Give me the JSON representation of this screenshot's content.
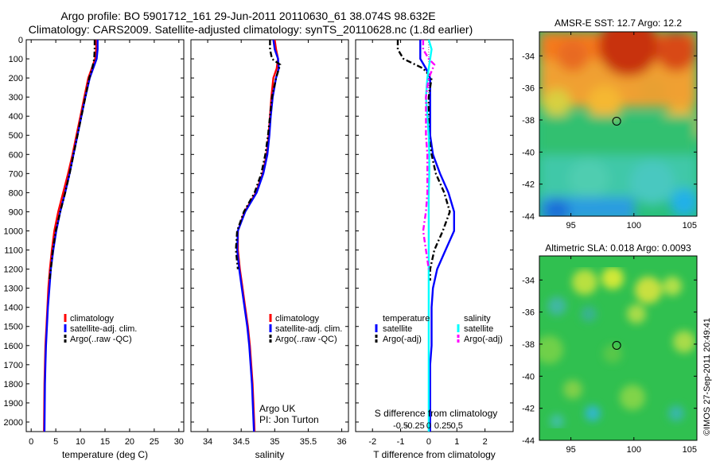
{
  "header": {
    "title_line1": "Argo profile: BO 5901712_161 29-Jun-2011 20110630_61 38.074S 98.632E",
    "title_line2": "Climatology: CARS2009. Satellite-adjusted climatology: synTS_20110628.nc (1.8d earlier)"
  },
  "side_text": "©IMOS 27-Sep-2011 20:49:41",
  "colors": {
    "climatology": "#ff0000",
    "satellite": "#0000ff",
    "argo": "#000000",
    "sal_satellite": "#00ffff",
    "sal_argo": "#ff00ff"
  },
  "chart_data": [
    {
      "id": "temperature",
      "type": "line",
      "xlabel": "temperature (deg C)",
      "ylabel": "",
      "xlim": [
        -1,
        31
      ],
      "ylim": [
        2050,
        0
      ],
      "xticks": [
        0,
        5,
        10,
        15,
        20,
        25,
        30
      ],
      "yticks": [
        0,
        100,
        200,
        300,
        400,
        500,
        600,
        700,
        800,
        900,
        1000,
        1100,
        1200,
        1300,
        1400,
        1500,
        1600,
        1700,
        1800,
        1900,
        2000
      ],
      "legend": [
        "climatology",
        "satellite-adj. clim.",
        "Argo(..raw -QC)"
      ],
      "series": [
        {
          "name": "climatology",
          "color": "#ff0000",
          "x": [
            13.2,
            13.2,
            13.0,
            12.3,
            11.6,
            10.8,
            10.0,
            9.2,
            8.4,
            7.5,
            6.5,
            5.5,
            4.7,
            4.2,
            3.8,
            3.5,
            3.3,
            3.1,
            2.9,
            2.8,
            2.7,
            2.6
          ],
          "y": [
            0,
            50,
            100,
            150,
            200,
            300,
            400,
            500,
            600,
            700,
            800,
            900,
            1000,
            1100,
            1200,
            1300,
            1400,
            1500,
            1600,
            1700,
            1800,
            2050
          ]
        },
        {
          "name": "satellite-adj. clim.",
          "color": "#0000ff",
          "x": [
            13.5,
            13.5,
            13.3,
            12.6,
            11.9,
            11.0,
            10.2,
            9.4,
            8.6,
            7.8,
            6.9,
            5.9,
            5.1,
            4.5,
            4.0,
            3.7,
            3.4,
            3.2,
            3.0,
            2.9,
            2.8,
            2.7
          ],
          "y": [
            0,
            50,
            100,
            150,
            200,
            300,
            400,
            500,
            600,
            700,
            800,
            900,
            1000,
            1100,
            1200,
            1300,
            1400,
            1500,
            1600,
            1700,
            1800,
            2050
          ]
        },
        {
          "name": "Argo(..raw -QC)",
          "color": "#000000",
          "x": [
            12.9,
            12.9,
            12.8,
            12.4,
            11.8,
            11.0,
            10.2,
            9.4,
            8.6,
            7.8,
            6.9,
            5.9,
            5.0,
            4.4,
            4.0,
            3.7
          ],
          "y": [
            0,
            50,
            100,
            150,
            200,
            300,
            400,
            500,
            600,
            700,
            800,
            900,
            1000,
            1100,
            1200,
            1260
          ]
        }
      ]
    },
    {
      "id": "salinity",
      "type": "line",
      "xlabel": "salinity",
      "ylabel": "",
      "xlim": [
        33.75,
        36.1
      ],
      "ylim": [
        2050,
        0
      ],
      "xticks": [
        34,
        34.5,
        35,
        35.5,
        36
      ],
      "legend": [
        "climatology",
        "satellite-adj. clim.",
        "Argo(..raw -QC)"
      ],
      "annotation_line1": "Argo UK",
      "annotation_line2": "PI: Jon Turton",
      "series": [
        {
          "name": "climatology",
          "color": "#ff0000",
          "x": [
            35.0,
            35.02,
            35.05,
            35.03,
            34.98,
            34.95,
            34.93,
            34.91,
            34.88,
            34.82,
            34.72,
            34.55,
            34.45,
            34.45,
            34.48,
            34.52,
            34.56,
            34.6,
            34.63,
            34.65,
            34.67,
            34.7
          ],
          "y": [
            0,
            50,
            100,
            150,
            200,
            300,
            400,
            500,
            600,
            700,
            800,
            900,
            1000,
            1100,
            1200,
            1300,
            1400,
            1500,
            1600,
            1700,
            1800,
            2050
          ]
        },
        {
          "name": "satellite-adj. clim.",
          "color": "#0000ff",
          "x": [
            34.98,
            35.0,
            35.05,
            35.06,
            35.02,
            34.97,
            34.94,
            34.92,
            34.89,
            34.83,
            34.73,
            34.56,
            34.45,
            34.44,
            34.47,
            34.51,
            34.55,
            34.59,
            34.62,
            34.64,
            34.66,
            34.69
          ],
          "y": [
            0,
            50,
            100,
            150,
            200,
            300,
            400,
            500,
            600,
            700,
            800,
            900,
            1000,
            1100,
            1200,
            1300,
            1400,
            1500,
            1600,
            1700,
            1800,
            2050
          ]
        },
        {
          "name": "Argo(..raw -QC)",
          "color": "#000000",
          "x": [
            34.93,
            34.93,
            34.96,
            35.08,
            35.02,
            34.96,
            34.93,
            34.9,
            34.86,
            34.8,
            34.7,
            34.54,
            34.44,
            34.42,
            34.45
          ],
          "y": [
            0,
            50,
            100,
            130,
            200,
            300,
            400,
            500,
            600,
            700,
            800,
            900,
            1000,
            1100,
            1200
          ]
        }
      ]
    },
    {
      "id": "difference",
      "type": "line",
      "xlabel": "T difference from climatology",
      "xlabel_top": "S difference from climatology",
      "xlim": [
        -2.6,
        3
      ],
      "ylim": [
        2050,
        0
      ],
      "xticks": [
        -2,
        -1,
        0,
        1,
        2
      ],
      "xticks_top_labels": [
        "-0.5",
        "-0.25",
        "0",
        "0.25",
        "0.5"
      ],
      "xticks_top_values": [
        -1,
        -0.5,
        0,
        0.5,
        1
      ],
      "legend_temperature_title": "temperature",
      "legend_salinity_title": "salinity",
      "legend_temperature": [
        "satellite",
        "Argo(-adj)"
      ],
      "legend_salinity": [
        "satellite",
        "Argo(-adj)"
      ],
      "series": [
        {
          "name": "temperature satellite",
          "color": "#0000ff",
          "x": [
            -0.3,
            -0.3,
            -0.3,
            -0.1,
            0.05,
            0.05,
            0.05,
            0.05,
            0.15,
            0.4,
            0.7,
            0.9,
            0.9,
            0.6,
            0.3,
            0.15,
            0.1,
            0.1,
            0.1,
            0.05,
            0.05,
            0.05
          ],
          "y": [
            0,
            50,
            100,
            150,
            200,
            300,
            400,
            500,
            600,
            700,
            800,
            900,
            1000,
            1100,
            1200,
            1300,
            1400,
            1500,
            1600,
            1700,
            1800,
            2050
          ]
        },
        {
          "name": "temperature Argo(-adj)",
          "color": "#000000",
          "x": [
            -1.1,
            -1.1,
            -0.9,
            -0.2,
            0.1,
            0.0,
            0.0,
            0.0,
            0.1,
            0.25,
            0.55,
            0.75,
            0.5,
            0.2,
            0.05,
            0.05
          ],
          "y": [
            0,
            50,
            100,
            150,
            200,
            300,
            400,
            500,
            600,
            700,
            800,
            900,
            1000,
            1100,
            1200,
            1260
          ]
        },
        {
          "name": "salinity satellite",
          "color": "#00ffff",
          "x": [
            0.0,
            0.1,
            0.05,
            0.0,
            -0.05,
            -0.1,
            -0.05,
            0.0,
            0.02,
            0.02,
            0.0,
            0.0,
            0.0,
            0.0,
            0.0,
            0.0,
            0.0,
            0.0,
            0.0,
            0.0,
            0.0,
            0.0
          ],
          "y": [
            0,
            50,
            100,
            150,
            200,
            300,
            400,
            500,
            600,
            700,
            800,
            900,
            1000,
            1100,
            1200,
            1300,
            1400,
            1500,
            1600,
            1700,
            1800,
            2050
          ]
        },
        {
          "name": "salinity Argo(-adj)",
          "color": "#ff00ff",
          "x": [
            -0.2,
            -0.2,
            0.0,
            0.2,
            0.0,
            -0.1,
            -0.1,
            -0.1,
            -0.05,
            -0.05,
            -0.05,
            -0.1,
            -0.2,
            -0.1,
            0.0
          ],
          "y": [
            0,
            50,
            100,
            130,
            200,
            300,
            400,
            500,
            600,
            700,
            800,
            900,
            1000,
            1100,
            1200
          ]
        }
      ]
    },
    {
      "id": "amsr-sst-map",
      "type": "heatmap",
      "title": "AMSR-E SST: 12.7 Argo: 12.2",
      "xlim": [
        92.5,
        105
      ],
      "ylim": [
        -44,
        -32.5
      ],
      "xticks": [
        95,
        100,
        105
      ],
      "yticks": [
        -44,
        -42,
        -40,
        -38,
        -36,
        -34
      ],
      "marker_lon": 98.632,
      "marker_lat": -38.074
    },
    {
      "id": "altimetric-sla-map",
      "type": "heatmap",
      "title": "Altimetric SLA: 0.018 Argo: 0.0093",
      "xlim": [
        92.5,
        105
      ],
      "ylim": [
        -44,
        -32.5
      ],
      "xticks": [
        95,
        100,
        105
      ],
      "yticks": [
        -44,
        -42,
        -40,
        -38,
        -36,
        -34
      ],
      "marker_lon": 98.632,
      "marker_lat": -38.074
    }
  ]
}
